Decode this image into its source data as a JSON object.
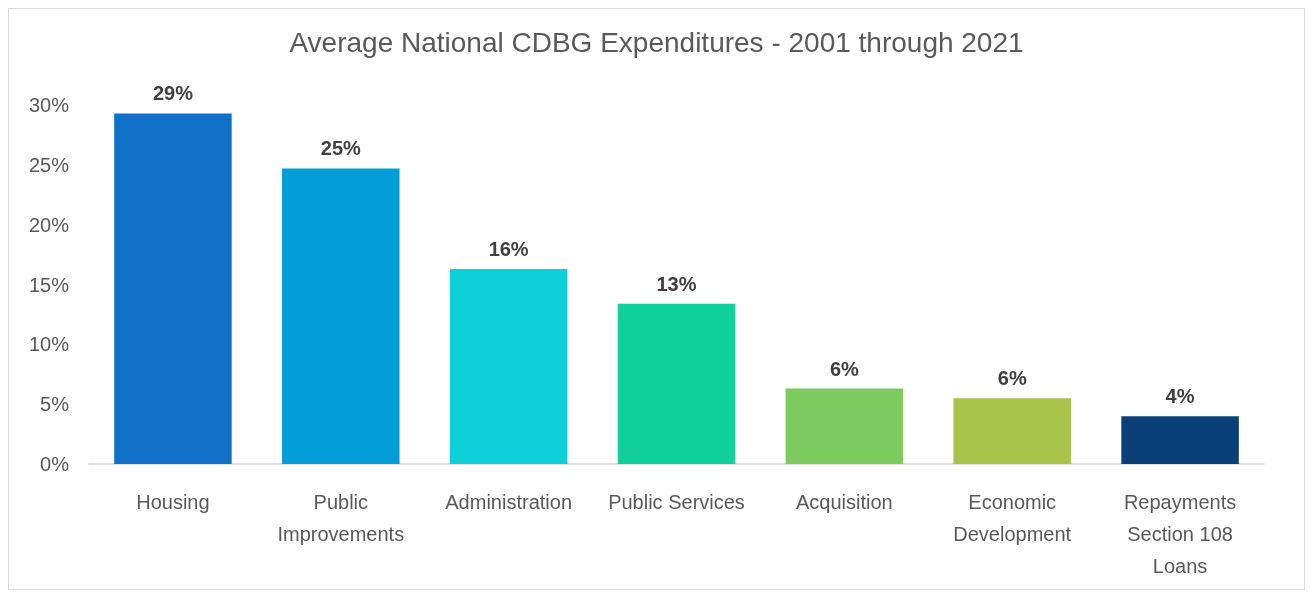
{
  "chart_data": {
    "type": "bar",
    "title": "Average National CDBG Expenditures - 2001 through 2021",
    "categories": [
      "Housing",
      "Public\nImprovements",
      "Administration",
      "Public Services",
      "Acquisition",
      "Economic\nDevelopment",
      "Repayments\nSection 108\nLoans"
    ],
    "values": [
      29.3,
      24.7,
      16.3,
      13.4,
      6.3,
      5.5,
      4.0
    ],
    "value_labels": [
      "29%",
      "25%",
      "16%",
      "13%",
      "6%",
      "6%",
      "4%"
    ],
    "colors": [
      "#1170c8",
      "#039dd9",
      "#0dd0d9",
      "#12d09c",
      "#7dca5e",
      "#a8c34a",
      "#0a4076"
    ],
    "ylim": [
      0,
      30
    ],
    "yticks": [
      {
        "value": 0,
        "label": "0%"
      },
      {
        "value": 5,
        "label": "5%"
      },
      {
        "value": 10,
        "label": "10%"
      },
      {
        "value": 15,
        "label": "15%"
      },
      {
        "value": 20,
        "label": "20%"
      },
      {
        "value": 25,
        "label": "25%"
      },
      {
        "value": 30,
        "label": "30%"
      }
    ],
    "grid": false
  }
}
